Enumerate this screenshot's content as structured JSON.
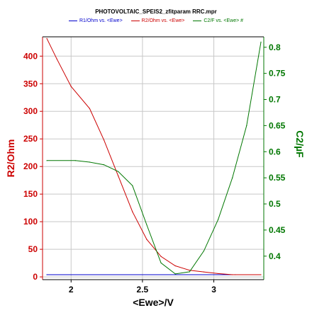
{
  "chart_data": {
    "type": "line",
    "title": "PHOTOVOLTAIC_SPEIS2_zfitparam RRC.mpr",
    "xlabel": "<Ewe>/V",
    "ylabel_left": "R2/Ohm",
    "ylabel_right": "C2/µF",
    "xlim": [
      1.8,
      3.35
    ],
    "ylim_left": [
      -5,
      435
    ],
    "ylim_right": [
      0.355,
      0.82
    ],
    "x_ticks": [
      "2",
      "2.5",
      "3"
    ],
    "x_tick_values": [
      2,
      2.5,
      3
    ],
    "y_left_ticks": [
      "0",
      "50",
      "100",
      "150",
      "200",
      "250",
      "300",
      "350",
      "400"
    ],
    "y_left_tick_values": [
      0,
      50,
      100,
      150,
      200,
      250,
      300,
      350,
      400
    ],
    "y_right_ticks": [
      "0.4",
      "0.45",
      "0.5",
      "0.55",
      "0.6",
      "0.65",
      "0.7",
      "0.75",
      "0.8"
    ],
    "y_right_tick_values": [
      0.4,
      0.45,
      0.5,
      0.55,
      0.6,
      0.65,
      0.7,
      0.75,
      0.8
    ],
    "grid": true,
    "legend_position": "top",
    "colors": {
      "left_axis": "#cc0000",
      "right_axis": "#007700",
      "grid": "#c8c8c8"
    },
    "series": [
      {
        "name": "R1/Ohm vs. <Ewe>",
        "axis": "left",
        "color": "#0000cc",
        "x": [
          1.83,
          3.15
        ],
        "y": [
          4,
          4
        ]
      },
      {
        "name": "R2/Ohm vs. <Ewe>",
        "axis": "left",
        "color": "#cc0000",
        "x": [
          1.83,
          1.9,
          2.0,
          2.13,
          2.23,
          2.33,
          2.43,
          2.53,
          2.63,
          2.73,
          2.83,
          2.93,
          3.03,
          3.13,
          3.33
        ],
        "y": [
          432,
          395,
          345,
          305,
          248,
          183,
          118,
          68,
          37,
          20,
          12,
          9,
          6,
          4,
          4
        ]
      },
      {
        "name": "C2/F vs. <Ewe> #",
        "axis": "right",
        "color": "#007700",
        "x": [
          1.83,
          2.03,
          2.13,
          2.23,
          2.33,
          2.43,
          2.53,
          2.63,
          2.73,
          2.83,
          2.93,
          3.03,
          3.13,
          3.23,
          3.33
        ],
        "y": [
          0.583,
          0.583,
          0.58,
          0.575,
          0.562,
          0.535,
          0.46,
          0.387,
          0.366,
          0.37,
          0.41,
          0.47,
          0.55,
          0.65,
          0.81
        ]
      }
    ]
  }
}
